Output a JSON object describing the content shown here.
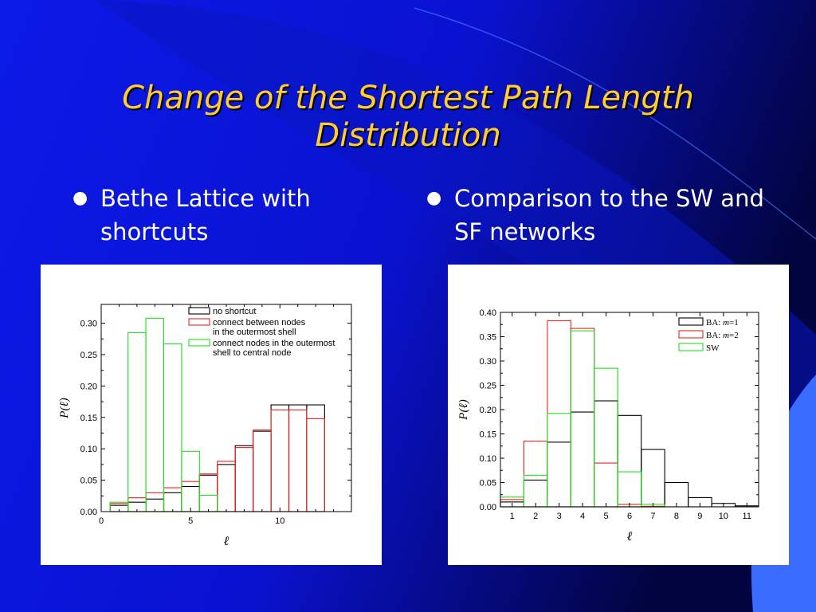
{
  "slide": {
    "title_line1": "Change of the Shortest Path Length",
    "title_line2": "Distribution",
    "bullet1": "Bethe Lattice with shortcuts",
    "bullet2": "Comparison to the SW and SF networks",
    "bullet_symbol": "●"
  },
  "colors": {
    "background": "#0a14e6",
    "title": "#ffcc33",
    "series_black": "#000000",
    "series_red": "#e8231e",
    "series_green": "#22dd22"
  },
  "chart_data": [
    {
      "type": "bar",
      "style": "step-histogram",
      "ylabel": "P(ℓ)",
      "xlabel": "ℓ",
      "xlim": [
        0,
        14
      ],
      "ylim": [
        0.0,
        0.33
      ],
      "xticks": [
        "0",
        "5",
        "10"
      ],
      "xtick_values": [
        0,
        5,
        10
      ],
      "yticks": [
        "0.00",
        "0.05",
        "0.10",
        "0.15",
        "0.20",
        "0.25",
        "0.30"
      ],
      "ytick_values": [
        0.0,
        0.05,
        0.1,
        0.15,
        0.2,
        0.25,
        0.3
      ],
      "bin_width": 1,
      "x": [
        1,
        2,
        3,
        4,
        5,
        6,
        7,
        8,
        9,
        10,
        11,
        12
      ],
      "legend_position": "top-right",
      "series": [
        {
          "name": "no shortcut",
          "legend_lines": [
            "no shortcut"
          ],
          "color": "#000000",
          "values": [
            0.01,
            0.015,
            0.02,
            0.03,
            0.04,
            0.058,
            0.075,
            0.105,
            0.128,
            0.17,
            0.17,
            0.17
          ]
        },
        {
          "name": "connect between nodes in the outermost shell",
          "legend_lines": [
            "connect between nodes",
            " in the outermost shell"
          ],
          "color": "#e8231e",
          "values": [
            0.013,
            0.022,
            0.03,
            0.038,
            0.048,
            0.06,
            0.08,
            0.102,
            0.13,
            0.162,
            0.162,
            0.148
          ]
        },
        {
          "name": "connect nodes in the outermost shell to central node",
          "legend_lines": [
            "connect nodes in the outermost",
            "  shell to central node"
          ],
          "color": "#22dd22",
          "values": [
            0.015,
            0.285,
            0.308,
            0.267,
            0.096,
            0.026,
            null,
            null,
            null,
            null,
            null,
            null
          ]
        }
      ]
    },
    {
      "type": "bar",
      "style": "step-histogram",
      "ylabel": "P(ℓ)",
      "xlabel": "ℓ",
      "xlim": [
        0.5,
        11.5
      ],
      "ylim": [
        0.0,
        0.4
      ],
      "xticks": [
        "1",
        "2",
        "3",
        "4",
        "5",
        "6",
        "7",
        "8",
        "9",
        "10",
        "11"
      ],
      "xtick_values": [
        1,
        2,
        3,
        4,
        5,
        6,
        7,
        8,
        9,
        10,
        11
      ],
      "yticks": [
        "0.00",
        "0.05",
        "0.10",
        "0.15",
        "0.20",
        "0.25",
        "0.30",
        "0.35",
        "0.40"
      ],
      "ytick_values": [
        0.0,
        0.05,
        0.1,
        0.15,
        0.2,
        0.25,
        0.3,
        0.35,
        0.4
      ],
      "bin_width": 1,
      "x": [
        1,
        2,
        3,
        4,
        5,
        6,
        7,
        8,
        9,
        10,
        11
      ],
      "legend_position": "top-right",
      "series": [
        {
          "name": "BA: m=1",
          "legend_prefix": "BA: ",
          "legend_italic": "m",
          "legend_suffix": "=1",
          "color": "#000000",
          "values": [
            0.01,
            0.055,
            0.133,
            0.195,
            0.218,
            0.188,
            0.118,
            0.05,
            0.019,
            0.007,
            0.002
          ]
        },
        {
          "name": "BA: m=2",
          "legend_prefix": "BA: ",
          "legend_italic": "m",
          "legend_suffix": "=2",
          "color": "#e8231e",
          "values": [
            0.015,
            0.135,
            0.383,
            0.367,
            0.09,
            0.005,
            0.001,
            null,
            null,
            null,
            null
          ]
        },
        {
          "name": "SW",
          "legend_prefix": "SW",
          "legend_italic": "",
          "legend_suffix": "",
          "color": "#22dd22",
          "values": [
            0.02,
            0.065,
            0.192,
            0.362,
            0.285,
            0.072,
            0.005,
            null,
            null,
            null,
            null
          ]
        }
      ]
    }
  ]
}
